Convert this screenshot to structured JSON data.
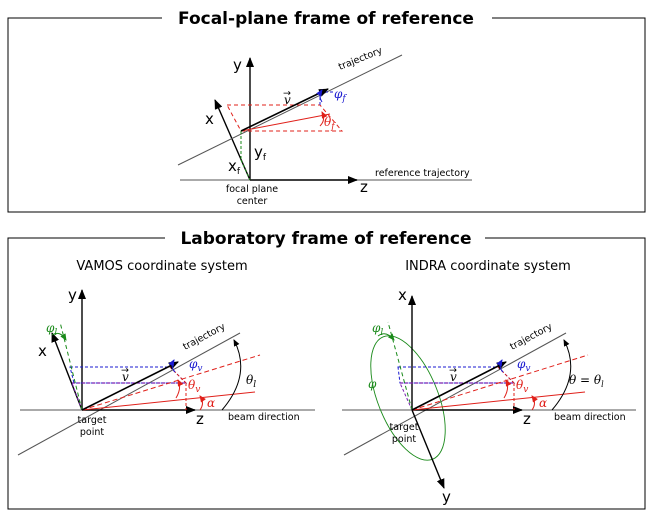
{
  "top_panel": {
    "title": "Focal-plane frame of reference",
    "axis_y": "y",
    "axis_x": "x",
    "axis_z": "z",
    "coord_yf": "y",
    "coord_yf_sub": "f",
    "coord_xf": "x",
    "coord_xf_sub": "f",
    "trajectory": "trajectory",
    "reference_trajectory": "reference trajectory",
    "origin_line1": "focal plane",
    "origin_line2": "center",
    "vector": "v",
    "phi": "φ",
    "phi_sub": "f",
    "theta": "θ",
    "theta_sub": "f"
  },
  "bottom_panel": {
    "title": "Laboratory frame of reference",
    "vamos": {
      "subtitle": "VAMOS coordinate system",
      "axis_y": "y",
      "axis_x": "x",
      "axis_z": "z",
      "trajectory": "trajectory",
      "beam_direction": "beam direction",
      "origin_line1": "target",
      "origin_line2": "point",
      "vector": "v",
      "phi_l": "φ",
      "phi_l_sub": "l",
      "phi_v": "φ",
      "phi_v_sub": "v",
      "theta_v": "θ",
      "theta_v_sub": "v",
      "theta_l": "θ",
      "theta_l_sub": "l",
      "alpha": "α"
    },
    "indra": {
      "subtitle": "INDRA coordinate system",
      "axis_x": "x",
      "axis_y": "y",
      "axis_z": "z",
      "trajectory": "trajectory",
      "beam_direction": "beam direction",
      "origin_line1": "target",
      "origin_line2": "point",
      "vector": "v",
      "phi": "φ",
      "phi_l": "φ",
      "phi_l_sub": "l",
      "phi_v": "φ",
      "phi_v_sub": "v",
      "theta_v": "θ",
      "theta_v_sub": "v",
      "theta_eq": "θ = θ",
      "theta_eq_sub": "l",
      "alpha": "α"
    }
  },
  "colors": {
    "red": "#e0201a",
    "blue": "#1a1ad0",
    "green": "#1a8a1a",
    "purple": "#7a20b0",
    "black": "#000000",
    "gray": "#555555"
  }
}
